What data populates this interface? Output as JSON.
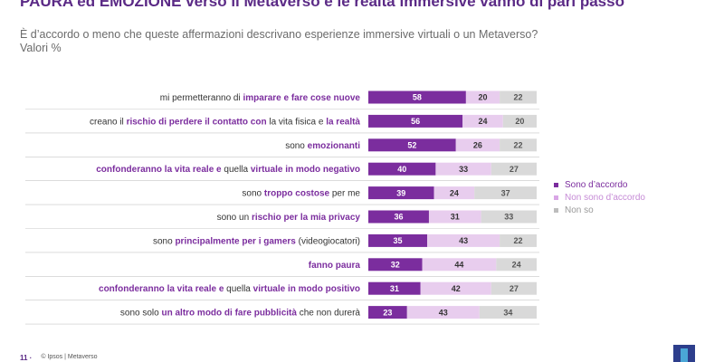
{
  "title": "PAURA ed EMOZIONE verso il Metaverso e le realtà immersive vanno di pari passo",
  "subtitle_line1": "È d’accordo o meno che queste affermazioni descrivano esperienze immersive virtuali o un Metaverso?",
  "subtitle_line2": "Valori %",
  "colors": {
    "agree": "#7b2d9e",
    "disagree": "#e8cdee",
    "dontknow": "#d9d9d9"
  },
  "legend": [
    "Sono d’accordo",
    "Non sono d’accordo",
    "Non so"
  ],
  "footer": {
    "page": "11 ·",
    "source": "© Ipsos | Metaverso"
  },
  "chart_data": {
    "type": "bar",
    "stacked": true,
    "orientation": "horizontal",
    "categories": [
      [
        {
          "t": "mi permetteranno di ",
          "h": false
        },
        {
          "t": "imparare e fare cose nuove",
          "h": true
        }
      ],
      [
        {
          "t": "creano il ",
          "h": false
        },
        {
          "t": "rischio di perdere il contatto con",
          "h": true
        },
        {
          "t": " la vita fisica e ",
          "h": false
        },
        {
          "t": "la realtà",
          "h": true
        }
      ],
      [
        {
          "t": "sono ",
          "h": false
        },
        {
          "t": "emozionanti",
          "h": true
        }
      ],
      [
        {
          "t": "confonderanno la vita reale e",
          "h": true
        },
        {
          "t": " quella ",
          "h": false
        },
        {
          "t": "virtuale in modo negativo",
          "h": true
        }
      ],
      [
        {
          "t": "sono ",
          "h": false
        },
        {
          "t": "troppo costose",
          "h": true
        },
        {
          "t": " per me",
          "h": false
        }
      ],
      [
        {
          "t": "sono un ",
          "h": false
        },
        {
          "t": "rischio per la mia privacy",
          "h": true
        }
      ],
      [
        {
          "t": "sono ",
          "h": false
        },
        {
          "t": "principalmente per i gamers",
          "h": true
        },
        {
          "t": " (videogiocatori)",
          "h": false
        }
      ],
      [
        {
          "t": "fanno paura",
          "h": true
        }
      ],
      [
        {
          "t": "confonderanno la vita reale e",
          "h": true
        },
        {
          "t": " quella ",
          "h": false
        },
        {
          "t": "virtuale in modo positivo",
          "h": true
        }
      ],
      [
        {
          "t": "sono solo ",
          "h": false
        },
        {
          "t": "un altro modo di fare pubblicità",
          "h": true
        },
        {
          "t": " che non durerà",
          "h": false
        }
      ]
    ],
    "series": [
      {
        "name": "Sono d’accordo",
        "values": [
          58,
          56,
          52,
          40,
          39,
          36,
          35,
          32,
          31,
          23
        ]
      },
      {
        "name": "Non sono d’accordo",
        "values": [
          20,
          24,
          26,
          33,
          24,
          31,
          43,
          44,
          42,
          43
        ]
      },
      {
        "name": "Non so",
        "values": [
          22,
          20,
          22,
          27,
          37,
          33,
          22,
          24,
          27,
          34
        ]
      }
    ]
  }
}
